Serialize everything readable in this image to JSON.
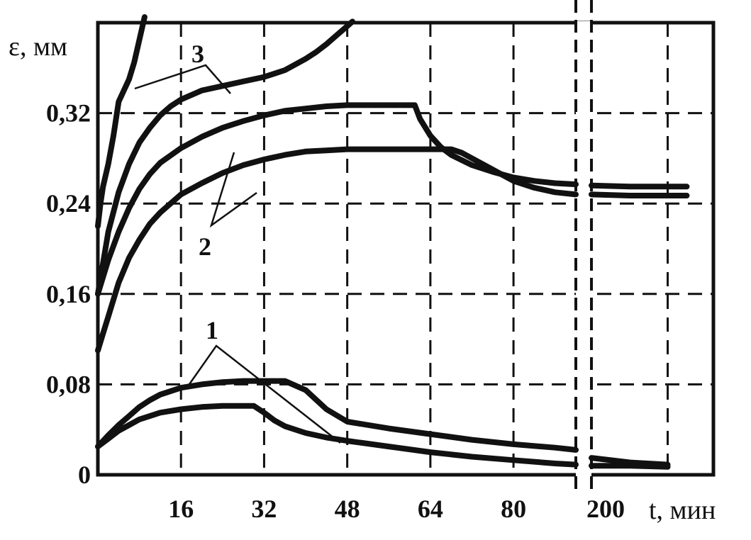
{
  "chart_data": {
    "type": "line",
    "title": "",
    "ylabel": "ε, мм",
    "xlabel": "t, мин",
    "grid": true,
    "legend": "none",
    "xlim": [
      0,
      232
    ],
    "ylim": [
      0,
      0.4
    ],
    "x_break": {
      "after": 92,
      "resume": 200
    },
    "x_ticks": [
      16,
      32,
      48,
      64,
      80,
      200
    ],
    "x_tick_labels": [
      "16",
      "32",
      "48",
      "64",
      "80",
      "200"
    ],
    "y_ticks": [
      0,
      0.08,
      0.16,
      0.24,
      0.32
    ],
    "y_tick_labels": [
      "0",
      "0,08",
      "0,16",
      "0,24",
      "0,32"
    ],
    "curve_labels": [
      "1",
      "2",
      "3"
    ],
    "series": [
      {
        "x": [
          0,
          2,
          4,
          6,
          8,
          10,
          12,
          16,
          20,
          24,
          28,
          30,
          32,
          34,
          36,
          40,
          44,
          48,
          56,
          64,
          72,
          80,
          88,
          92,
          200,
          210,
          220
        ],
        "values": [
          0.025,
          0.035,
          0.044,
          0.052,
          0.06,
          0.066,
          0.071,
          0.077,
          0.08,
          0.082,
          0.083,
          0.083,
          0.083,
          0.083,
          0.083,
          0.075,
          0.058,
          0.047,
          0.041,
          0.036,
          0.031,
          0.027,
          0.024,
          0.022,
          0.015,
          0.011,
          0.009
        ]
      },
      {
        "x": [
          0,
          2,
          4,
          6,
          8,
          10,
          12,
          16,
          20,
          24,
          28,
          30,
          32,
          34,
          36,
          40,
          44,
          48,
          56,
          64,
          72,
          80,
          88,
          92,
          200,
          210,
          220
        ],
        "values": [
          0.025,
          0.032,
          0.039,
          0.044,
          0.049,
          0.052,
          0.055,
          0.058,
          0.06,
          0.061,
          0.061,
          0.061,
          0.055,
          0.048,
          0.043,
          0.037,
          0.033,
          0.03,
          0.025,
          0.02,
          0.016,
          0.013,
          0.01,
          0.009,
          0.008,
          0.008,
          0.007
        ]
      },
      {
        "x": [
          0,
          1,
          2,
          4,
          6,
          8,
          10,
          12,
          16,
          20,
          24,
          28,
          32,
          36,
          40,
          44,
          48,
          52,
          56,
          60,
          61,
          62,
          64,
          66,
          68,
          72,
          76,
          80,
          84,
          88,
          92,
          200,
          210,
          220,
          225
        ],
        "values": [
          0.16,
          0.175,
          0.19,
          0.215,
          0.236,
          0.253,
          0.266,
          0.276,
          0.289,
          0.299,
          0.307,
          0.313,
          0.318,
          0.322,
          0.324,
          0.326,
          0.327,
          0.327,
          0.327,
          0.327,
          0.327,
          0.315,
          0.3,
          0.29,
          0.283,
          0.274,
          0.268,
          0.263,
          0.26,
          0.258,
          0.257,
          0.256,
          0.255,
          0.255,
          0.255
        ]
      },
      {
        "x": [
          0,
          1,
          2,
          4,
          6,
          8,
          10,
          12,
          16,
          20,
          24,
          28,
          32,
          36,
          40,
          44,
          48,
          56,
          64,
          68,
          70,
          72,
          76,
          80,
          84,
          88,
          92,
          200,
          210,
          220,
          225
        ],
        "values": [
          0.11,
          0.125,
          0.14,
          0.17,
          0.192,
          0.208,
          0.222,
          0.232,
          0.248,
          0.258,
          0.267,
          0.274,
          0.279,
          0.283,
          0.286,
          0.287,
          0.288,
          0.288,
          0.288,
          0.288,
          0.285,
          0.28,
          0.27,
          0.26,
          0.254,
          0.25,
          0.248,
          0.248,
          0.247,
          0.247,
          0.247
        ]
      },
      {
        "x": [
          0,
          0.5,
          1,
          2,
          3,
          4,
          6,
          7,
          8,
          9
        ],
        "values": [
          0.22,
          0.24,
          0.255,
          0.275,
          0.3,
          0.33,
          0.35,
          0.365,
          0.385,
          0.405
        ]
      },
      {
        "x": [
          0,
          2,
          4,
          6,
          8,
          10,
          12,
          14,
          16,
          20,
          24,
          28,
          32,
          34,
          36,
          38,
          40,
          42,
          44,
          46,
          48,
          49
        ],
        "values": [
          0.16,
          0.215,
          0.25,
          0.275,
          0.294,
          0.307,
          0.318,
          0.326,
          0.332,
          0.34,
          0.344,
          0.348,
          0.352,
          0.355,
          0.358,
          0.363,
          0.368,
          0.374,
          0.381,
          0.389,
          0.397,
          0.401
        ]
      }
    ]
  }
}
